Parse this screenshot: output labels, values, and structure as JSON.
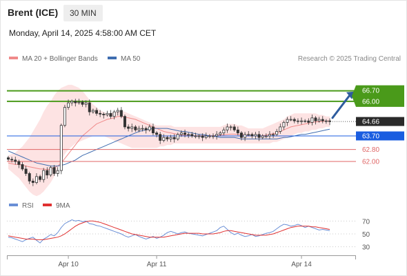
{
  "header": {
    "instrument": "Brent (ICE)",
    "timeframe": "30 MIN",
    "datetime": "Monday, April 14, 2025 4:58:00 AM CET"
  },
  "legend": {
    "ma20_bb": "MA 20 + Bollinger Bands",
    "ma50": "MA 50",
    "research": "Research © 2025 Trading Central",
    "rsi": "RSI",
    "rsi_ma": "9MA"
  },
  "colors": {
    "bollinger_fill": "#fde3e3",
    "ma20": "#f08a8a",
    "ma50": "#3f6db0",
    "candle": "#333333",
    "resistance": "#4a9a1a",
    "support": "#e06666",
    "pivot": "#1a5de0",
    "last_price": "#2a2a2a",
    "arrow": "#2e5c9e",
    "rsi": "#6a8fd6",
    "rsi_ma": "#e03030"
  },
  "levels": {
    "r2": "66.70",
    "r1": "66.00",
    "last": "64.66",
    "pivot": "63.70",
    "s1": "62.80",
    "s2": "62.00"
  },
  "x_axis": {
    "labels": [
      "Apr 10",
      "Apr 11",
      "Apr 14"
    ]
  },
  "rsi_axis": {
    "labels": [
      "70",
      "50",
      "30"
    ]
  },
  "chart_data": [
    {
      "type": "candlestick",
      "title": "Brent (ICE)",
      "timeframe": "30 MIN",
      "ylim": [
        59.8,
        67.6
      ],
      "x_labels": [
        "Apr 10",
        "Apr 11",
        "Apr 14"
      ],
      "close": [
        62.15,
        62.1,
        62.0,
        61.8,
        61.5,
        61.2,
        60.7,
        60.6,
        61.0,
        60.8,
        61.4,
        61.1,
        61.6,
        61.2,
        61.4,
        64.4,
        65.6,
        65.9,
        66.0,
        65.9,
        65.95,
        65.8,
        65.9,
        65.3,
        65.4,
        65.2,
        65.15,
        65.1,
        65.2,
        65.0,
        65.3,
        65.4,
        65.0,
        64.3,
        64.2,
        64.3,
        64.1,
        64.2,
        64.2,
        64.1,
        64.3,
        63.9,
        63.8,
        63.4,
        63.6,
        63.5,
        63.6,
        63.5,
        63.8,
        63.9,
        63.8,
        63.8,
        63.7,
        63.7,
        63.7,
        63.6,
        63.7,
        63.7,
        63.7,
        63.8,
        63.9,
        64.1,
        64.3,
        64.3,
        64.1,
        63.9,
        63.6,
        63.8,
        63.8,
        63.7,
        63.8,
        63.6,
        63.7,
        63.7,
        63.8,
        63.8,
        64.0,
        64.3,
        64.6,
        64.8,
        64.8,
        64.7,
        64.7,
        64.7,
        64.7,
        64.6,
        64.9,
        64.7,
        64.8,
        64.7,
        64.7,
        64.66
      ],
      "bollinger_upper": [
        62.4,
        62.5,
        62.6,
        62.8,
        63.0,
        63.3,
        63.6,
        64.0,
        64.4,
        64.8,
        65.3,
        65.7,
        66.0,
        66.4,
        66.7,
        66.9,
        67.0,
        67.1,
        67.1,
        67.0,
        66.9,
        66.7,
        66.4,
        66.1,
        65.8,
        65.6,
        65.4,
        65.3,
        65.2,
        65.2,
        65.3,
        65.3,
        65.4,
        65.3,
        65.2,
        65.1,
        65.0,
        64.9,
        64.8,
        64.7,
        64.6,
        64.5,
        64.4,
        64.4,
        64.4,
        64.4,
        64.4,
        64.3,
        64.3,
        64.3,
        64.3,
        64.3,
        64.3,
        64.3,
        64.3,
        64.3,
        64.3,
        64.3,
        64.3,
        64.3,
        64.3,
        64.4,
        64.5,
        64.5,
        64.5,
        64.4,
        64.4,
        64.3,
        64.2,
        64.2,
        64.2,
        64.2,
        64.2,
        64.3,
        64.4,
        64.5,
        64.6,
        64.7,
        64.8,
        65.0,
        65.1,
        65.2,
        65.2,
        65.2,
        65.2,
        65.2,
        65.2,
        65.2,
        65.1,
        65.1,
        65.0,
        65.0
      ],
      "ma20": [
        61.9,
        61.85,
        61.8,
        61.8,
        61.75,
        61.7,
        61.65,
        61.6,
        61.55,
        61.5,
        61.5,
        61.45,
        61.5,
        61.6,
        61.7,
        61.9,
        62.2,
        62.5,
        62.8,
        63.1,
        63.4,
        63.7,
        63.9,
        64.1,
        64.3,
        64.5,
        64.6,
        64.7,
        64.8,
        64.85,
        64.9,
        65.0,
        65.0,
        64.95,
        64.9,
        64.85,
        64.8,
        64.7,
        64.6,
        64.5,
        64.4,
        64.3,
        64.2,
        64.1,
        64.0,
        63.95,
        63.9,
        63.85,
        63.8,
        63.75,
        63.75,
        63.72,
        63.72,
        63.72,
        63.72,
        63.72,
        63.72,
        63.72,
        63.72,
        63.73,
        63.75,
        63.78,
        63.8,
        63.82,
        63.82,
        63.8,
        63.78,
        63.75,
        63.72,
        63.7,
        63.7,
        63.7,
        63.72,
        63.75,
        63.8,
        63.85,
        63.9,
        64.0,
        64.1,
        64.2,
        64.3,
        64.35,
        64.4,
        64.45,
        64.5,
        64.55,
        64.6,
        64.62,
        64.65,
        64.67,
        64.7,
        64.7
      ],
      "bollinger_lower": [
        61.5,
        61.3,
        61.1,
        60.9,
        60.6,
        60.3,
        60.0,
        59.8,
        59.7,
        59.8,
        60.0,
        60.3,
        60.6,
        61.0,
        61.5,
        62.0,
        62.5,
        62.8,
        63.0,
        63.2,
        63.3,
        63.4,
        63.5,
        63.6,
        63.7,
        63.7,
        63.7,
        63.7,
        63.6,
        63.5,
        63.4,
        63.3,
        63.2,
        63.1,
        63.0,
        62.9,
        62.9,
        62.9,
        62.9,
        62.9,
        62.9,
        62.9,
        62.9,
        63.0,
        63.0,
        63.1,
        63.1,
        63.2,
        63.2,
        63.2,
        63.2,
        63.2,
        63.2,
        63.2,
        63.2,
        63.2,
        63.2,
        63.2,
        63.2,
        63.2,
        63.2,
        63.2,
        63.2,
        63.2,
        63.2,
        63.2,
        63.2,
        63.2,
        63.2,
        63.2,
        63.2,
        63.2,
        63.2,
        63.2,
        63.2,
        63.3,
        63.3,
        63.4,
        63.5,
        63.6,
        63.7,
        63.8,
        63.9,
        63.9,
        64.0,
        64.0,
        64.1,
        64.1,
        64.2,
        64.2,
        64.3,
        64.3
      ],
      "ma50": [
        62.7,
        62.6,
        62.5,
        62.4,
        62.3,
        62.2,
        62.1,
        62.0,
        61.9,
        61.85,
        61.8,
        61.75,
        61.7,
        61.7,
        61.7,
        61.75,
        61.8,
        61.9,
        62.0,
        62.1,
        62.25,
        62.4,
        62.5,
        62.6,
        62.7,
        62.8,
        62.9,
        63.0,
        63.1,
        63.2,
        63.3,
        63.4,
        63.5,
        63.6,
        63.7,
        63.8,
        63.9,
        64.0,
        64.05,
        64.1,
        64.15,
        64.2,
        64.2,
        64.2,
        64.2,
        64.2,
        64.15,
        64.1,
        64.05,
        64.0,
        64.0,
        63.95,
        63.9,
        63.85,
        63.8,
        63.8,
        63.75,
        63.7,
        63.7,
        63.65,
        63.6,
        63.6,
        63.6,
        63.6,
        63.6,
        63.55,
        63.5,
        63.5,
        63.5,
        63.5,
        63.5,
        63.5,
        63.5,
        63.5,
        63.5,
        63.5,
        63.5,
        63.55,
        63.6,
        63.6,
        63.65,
        63.7,
        63.75,
        63.8,
        63.8,
        63.85,
        63.9,
        63.95,
        64.0,
        64.05,
        64.1,
        64.15
      ],
      "levels": [
        {
          "label": "66.70",
          "value": 66.7
        },
        {
          "label": "66.00",
          "value": 66.0
        },
        {
          "label": "64.66",
          "value": 64.66
        },
        {
          "label": "63.70",
          "value": 63.7
        },
        {
          "label": "62.80",
          "value": 62.8
        },
        {
          "label": "62.00",
          "value": 62.0
        }
      ],
      "annotation": "arrow pointing up toward 66.70"
    },
    {
      "type": "line",
      "title": "RSI",
      "ylim": [
        20,
        80
      ],
      "y_ticks": [
        70,
        50,
        30
      ],
      "series": [
        {
          "name": "RSI",
          "values": [
            45,
            44,
            42,
            40,
            38,
            41,
            43,
            45,
            40,
            36,
            42,
            45,
            49,
            47,
            52,
            60,
            66,
            69,
            72,
            70,
            71,
            69,
            70,
            66,
            65,
            63,
            62,
            60,
            58,
            56,
            54,
            52,
            50,
            47,
            45,
            47,
            49,
            46,
            44,
            42,
            44,
            46,
            43,
            45,
            48,
            52,
            54,
            52,
            50,
            52,
            53,
            51,
            50,
            49,
            48,
            47,
            49,
            51,
            53,
            55,
            60,
            62,
            57,
            52,
            49,
            51,
            48,
            46,
            47,
            49,
            46,
            47,
            49,
            51,
            52,
            54,
            58,
            62,
            65,
            64,
            62,
            63,
            65,
            63,
            60,
            62,
            60,
            58,
            56,
            57,
            56,
            55
          ]
        },
        {
          "name": "9MA",
          "values": [
            47,
            46,
            45,
            44,
            43,
            42,
            42,
            42,
            41,
            41,
            41,
            42,
            43,
            44,
            45,
            47,
            50,
            54,
            58,
            62,
            65,
            67,
            69,
            70,
            70,
            69,
            68,
            66,
            64,
            62,
            60,
            58,
            56,
            54,
            52,
            50,
            49,
            48,
            47,
            46,
            45,
            45,
            45,
            45,
            45,
            46,
            47,
            48,
            49,
            50,
            51,
            51,
            51,
            51,
            51,
            50,
            50,
            50,
            50,
            51,
            52,
            54,
            55,
            55,
            54,
            53,
            52,
            51,
            50,
            49,
            48,
            48,
            48,
            48,
            49,
            50,
            52,
            54,
            56,
            58,
            60,
            61,
            62,
            62,
            62,
            62,
            61,
            61,
            60,
            59,
            58,
            57
          ]
        }
      ]
    }
  ]
}
